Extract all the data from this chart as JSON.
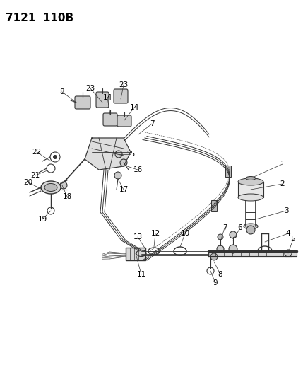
{
  "title": "7121  110B",
  "bg_color": "#ffffff",
  "line_color": "#333333",
  "label_color": "#000000",
  "label_fontsize": 7.5,
  "title_fontsize": 11,
  "title_fontweight": "bold"
}
